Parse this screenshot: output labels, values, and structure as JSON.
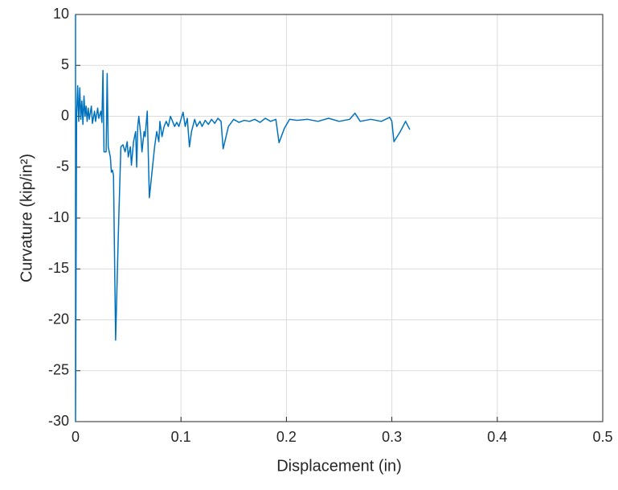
{
  "chart_data": {
    "type": "line",
    "xlabel": "Displacement (in)",
    "ylabel": "Curvature (kip/in²)",
    "xlim": [
      0,
      0.5
    ],
    "xticks": [
      0,
      0.1,
      0.2,
      0.3,
      0.4,
      0.5
    ],
    "ylim": [
      -30,
      10
    ],
    "yticks": [
      -30,
      -25,
      -20,
      -15,
      -10,
      -5,
      0,
      5,
      10
    ],
    "grid": true,
    "series": [
      {
        "color": "#0072bd",
        "x": [
          0,
          0,
          0.001,
          0.002,
          0.003,
          0.004,
          0.005,
          0.006,
          0.007,
          0.008,
          0.009,
          0.01,
          0.011,
          0.012,
          0.013,
          0.015,
          0.016,
          0.018,
          0.019,
          0.021,
          0.022,
          0.024,
          0.025,
          0.026,
          0.027,
          0.029,
          0.03,
          0.031,
          0.033,
          0.034,
          0.035,
          0.036,
          0.038,
          0.041,
          0.043,
          0.045,
          0.047,
          0.049,
          0.05,
          0.052,
          0.053,
          0.055,
          0.057,
          0.058,
          0.059,
          0.06,
          0.062,
          0.063,
          0.065,
          0.066,
          0.068,
          0.07,
          0.073,
          0.075,
          0.077,
          0.079,
          0.08,
          0.082,
          0.084,
          0.086,
          0.088,
          0.09,
          0.092,
          0.094,
          0.096,
          0.098,
          0.1,
          0.102,
          0.104,
          0.106,
          0.108,
          0.11,
          0.113,
          0.115,
          0.118,
          0.12,
          0.123,
          0.126,
          0.129,
          0.132,
          0.135,
          0.138,
          0.14,
          0.145,
          0.15,
          0.155,
          0.16,
          0.165,
          0.17,
          0.175,
          0.18,
          0.185,
          0.19,
          0.193,
          0.198,
          0.203,
          0.21,
          0.22,
          0.23,
          0.24,
          0.25,
          0.26,
          0.265,
          0.27,
          0.28,
          0.29,
          0.298,
          0.3,
          0.302,
          0.308,
          0.313,
          0.317
        ],
        "values": [
          10,
          -30,
          0,
          3,
          -0.5,
          2.8,
          -0.3,
          1.5,
          -0.8,
          2,
          0,
          1,
          -0.5,
          0.8,
          -0.3,
          1,
          -0.7,
          0.5,
          -0.5,
          0.8,
          -0.2,
          0.5,
          -0.6,
          4.5,
          -3.5,
          -3.5,
          4.2,
          -3,
          -4,
          -5.5,
          -5.3,
          -5.8,
          -22,
          -10,
          -3,
          -2.8,
          -3.5,
          -2.5,
          -4,
          -3,
          -4.8,
          -2.5,
          -1.5,
          -5,
          -1,
          0,
          -2,
          -3.5,
          -1.5,
          -2,
          0.5,
          -8,
          -5,
          -3,
          -1.5,
          -2.5,
          -0.5,
          -2,
          -1,
          -0.5,
          -1,
          0,
          -0.5,
          -1,
          -0.6,
          -1,
          -0.3,
          0.4,
          -1,
          -0.2,
          -3,
          -1.5,
          -0.3,
          -1,
          -0.5,
          -1,
          -0.4,
          -0.8,
          -0.3,
          -0.7,
          -0.2,
          -0.5,
          -3.2,
          -1,
          -0.3,
          -0.6,
          -0.4,
          -0.5,
          -0.3,
          -0.6,
          -0.2,
          -0.5,
          -0.3,
          -2.6,
          -1.2,
          -0.3,
          -0.4,
          -0.3,
          -0.5,
          -0.2,
          -0.5,
          -0.3,
          0.3,
          -0.5,
          -0.3,
          -0.5,
          -0.1,
          -0.5,
          -2.5,
          -1.5,
          -0.5,
          -1.3
        ]
      }
    ]
  }
}
